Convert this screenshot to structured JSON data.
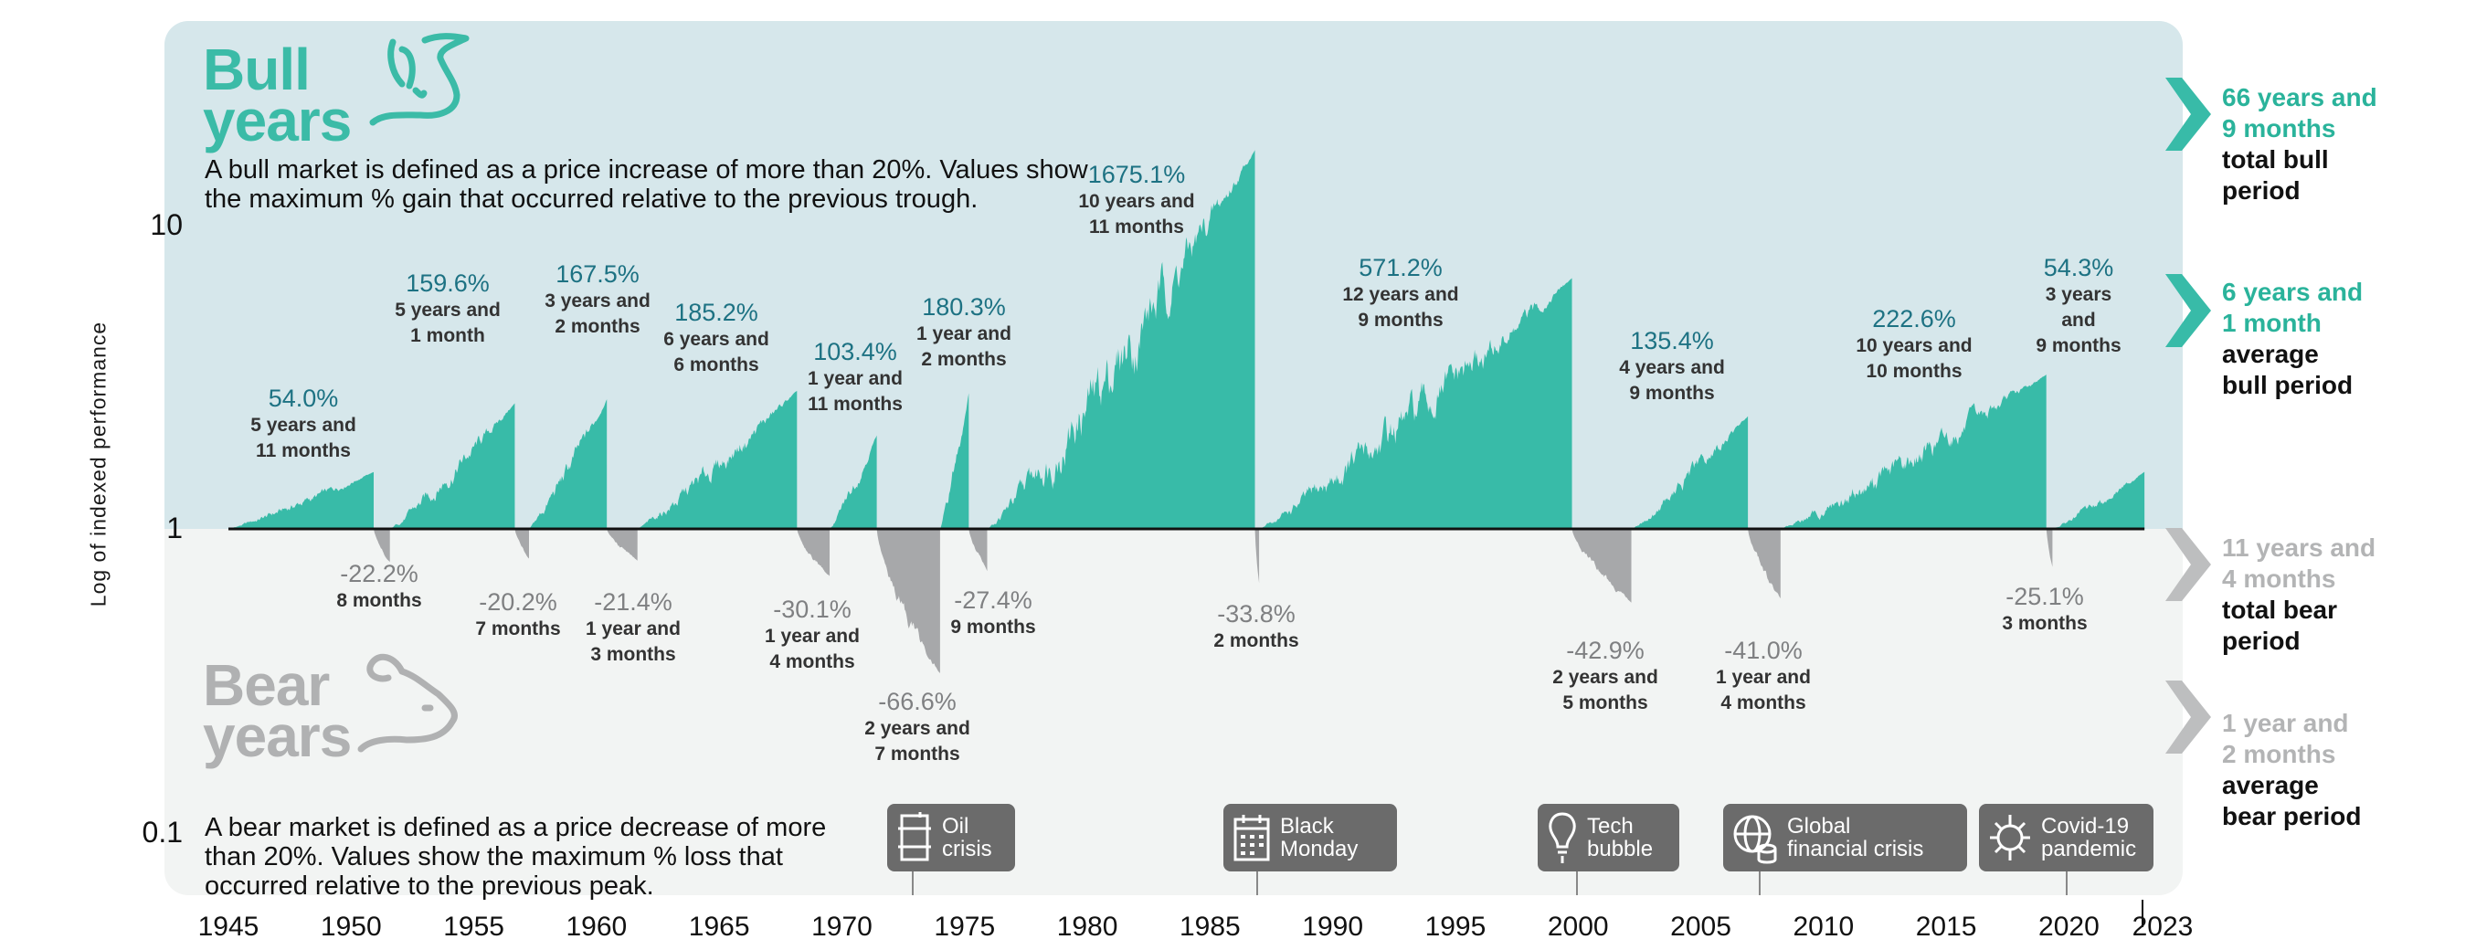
{
  "chart_data": {
    "type": "area",
    "ylabel": "Log of indexed performance",
    "yscale": "log",
    "ylim": [
      0.1,
      25
    ],
    "yticks": [
      "10",
      "1",
      "0.1"
    ],
    "xlim": [
      1945,
      2023
    ],
    "xticks": [
      "1945",
      "1950",
      "1955",
      "1960",
      "1965",
      "1970",
      "1975",
      "1980",
      "1985",
      "1990",
      "1995",
      "2000",
      "2005",
      "2010",
      "2015",
      "2020",
      "2023"
    ],
    "colors": {
      "bull": "#38bba8",
      "bear": "#a7a8aa",
      "bull_panel": "#d6e7eb",
      "bear_panel": "#f2f4f3"
    },
    "periods": [
      {
        "kind": "bull",
        "start": 1945.0,
        "end": 1950.92,
        "change_pct": 54.0,
        "label": "54.0%",
        "duration": [
          "5 years and",
          "11 months"
        ]
      },
      {
        "kind": "bear",
        "start": 1950.92,
        "end": 1951.58,
        "change_pct": -22.2,
        "label": "-22.2%",
        "duration": [
          "8 months"
        ]
      },
      {
        "kind": "bull",
        "start": 1951.58,
        "end": 1956.67,
        "change_pct": 159.6,
        "label": "159.6%",
        "duration": [
          "5 years and",
          "1 month"
        ]
      },
      {
        "kind": "bear",
        "start": 1956.67,
        "end": 1957.25,
        "change_pct": -20.2,
        "label": "-20.2%",
        "duration": [
          "7 months"
        ]
      },
      {
        "kind": "bull",
        "start": 1957.25,
        "end": 1960.42,
        "change_pct": 167.5,
        "label": "167.5%",
        "duration": [
          "3 years and",
          "2 months"
        ]
      },
      {
        "kind": "bear",
        "start": 1960.42,
        "end": 1961.67,
        "change_pct": -21.4,
        "label": "-21.4%",
        "duration": [
          "1 year and",
          "3 months"
        ]
      },
      {
        "kind": "bull",
        "start": 1961.67,
        "end": 1968.17,
        "change_pct": 185.2,
        "label": "185.2%",
        "duration": [
          "6 years and",
          "6 months"
        ]
      },
      {
        "kind": "bear",
        "start": 1968.17,
        "end": 1969.5,
        "change_pct": -30.1,
        "label": "-30.1%",
        "duration": [
          "1 year and",
          "4 months"
        ]
      },
      {
        "kind": "bull",
        "start": 1969.5,
        "end": 1971.42,
        "change_pct": 103.4,
        "label": "103.4%",
        "duration": [
          "1 year and",
          "11 months"
        ]
      },
      {
        "kind": "bear",
        "start": 1971.42,
        "end": 1974.0,
        "change_pct": -66.6,
        "label": "-66.6%",
        "duration": [
          "2 years and",
          "7 months"
        ]
      },
      {
        "kind": "bull",
        "start": 1974.0,
        "end": 1975.17,
        "change_pct": 180.3,
        "label": "180.3%",
        "duration": [
          "1 year and",
          "2 months"
        ]
      },
      {
        "kind": "bear",
        "start": 1975.17,
        "end": 1975.92,
        "change_pct": -27.4,
        "label": "-27.4%",
        "duration": [
          "9 months"
        ]
      },
      {
        "kind": "bull",
        "start": 1975.92,
        "end": 1986.83,
        "change_pct": 1675.1,
        "label": "1675.1%",
        "duration": [
          "10 years and",
          "11 months"
        ]
      },
      {
        "kind": "bear",
        "start": 1986.83,
        "end": 1987.0,
        "change_pct": -33.8,
        "label": "-33.8%",
        "duration": [
          "2 months"
        ]
      },
      {
        "kind": "bull",
        "start": 1987.0,
        "end": 1999.75,
        "change_pct": 571.2,
        "label": "571.2%",
        "duration": [
          "12 years and",
          "9 months"
        ]
      },
      {
        "kind": "bear",
        "start": 1999.75,
        "end": 2002.17,
        "change_pct": -42.9,
        "label": "-42.9%",
        "duration": [
          "2 years and",
          "5 months"
        ]
      },
      {
        "kind": "bull",
        "start": 2002.17,
        "end": 2006.92,
        "change_pct": 135.4,
        "label": "135.4%",
        "duration": [
          "4 years and",
          "9 months"
        ]
      },
      {
        "kind": "bear",
        "start": 2006.92,
        "end": 2008.25,
        "change_pct": -41.0,
        "label": "-41.0%",
        "duration": [
          "1 year and",
          "4 months"
        ]
      },
      {
        "kind": "bull",
        "start": 2008.25,
        "end": 2019.08,
        "change_pct": 222.6,
        "label": "222.6%",
        "duration": [
          "10 years and",
          "10 months"
        ]
      },
      {
        "kind": "bear",
        "start": 2019.08,
        "end": 2019.33,
        "change_pct": -25.1,
        "label": "-25.1%",
        "duration": [
          "3 months"
        ]
      },
      {
        "kind": "bull",
        "start": 2019.33,
        "end": 2023.08,
        "change_pct": 54.3,
        "label": "54.3%",
        "duration": [
          "3 years",
          "and",
          "9 months"
        ]
      }
    ]
  },
  "bull": {
    "title": [
      "Bull",
      "years"
    ],
    "description": "A bull market is defined as a price increase of more than 20%. Values show the maximum % gain that occurred relative to the previous trough.",
    "total": {
      "value": [
        "66 years and",
        "9 months"
      ],
      "caption": [
        "total bull",
        "period"
      ]
    },
    "average": {
      "value": [
        "6 years and",
        "1 month"
      ],
      "caption": [
        "average",
        "bull period"
      ]
    }
  },
  "bear": {
    "title": [
      "Bear",
      "years"
    ],
    "description": "A bear market is defined as a price decrease of more than 20%. Values show the maximum % loss that occurred relative to the previous peak.",
    "total": {
      "value": [
        "11 years and",
        "4 months"
      ],
      "caption": [
        "total bear",
        "period"
      ]
    },
    "average": {
      "value": [
        "1 year and",
        "2 months"
      ],
      "caption": [
        "average",
        "bear period"
      ]
    }
  },
  "events": [
    {
      "label": [
        "Oil",
        "crisis"
      ],
      "icon": "oil-barrel-icon",
      "year": 1973.8
    },
    {
      "label": [
        "Black",
        "Monday"
      ],
      "icon": "calendar-icon",
      "year": 1987.0
    },
    {
      "label": [
        "Tech",
        "bubble"
      ],
      "icon": "lightbulb-icon",
      "year": 2000.0
    },
    {
      "label": [
        "Global",
        "financial crisis"
      ],
      "icon": "globe-coins-icon",
      "year": 2007.4
    },
    {
      "label": [
        "Covid-19",
        "pandemic"
      ],
      "icon": "virus-icon",
      "year": 2019.6
    }
  ]
}
